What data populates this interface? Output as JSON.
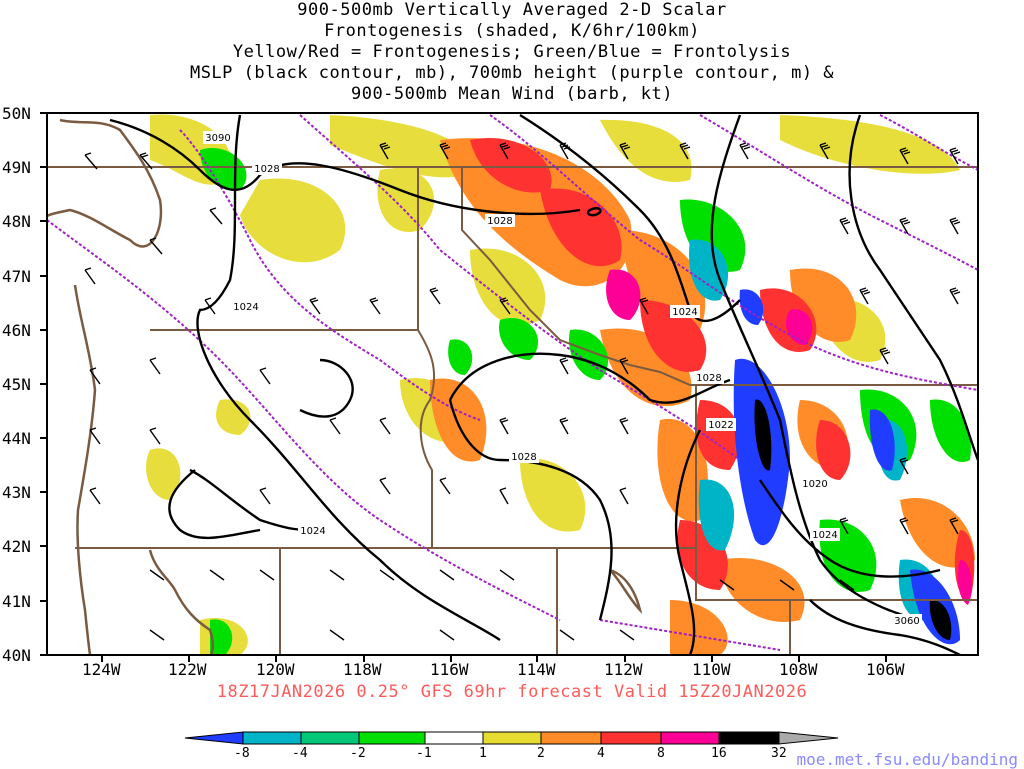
{
  "title_lines": [
    "900-500mb Vertically Averaged 2-D Scalar",
    "Frontogenesis (shaded, K/6hr/100km)",
    "Yellow/Red = Frontogenesis;  Green/Blue = Frontolysis",
    "MSLP (black contour, mb), 700mb height (purple contour, m) &",
    "900-500mb Mean Wind (barb, kt)"
  ],
  "lat_labels": [
    "50N",
    "49N",
    "48N",
    "47N",
    "46N",
    "45N",
    "44N",
    "43N",
    "42N",
    "41N",
    "40N"
  ],
  "lon_labels": [
    "124W",
    "122W",
    "120W",
    "118W",
    "116W",
    "114W",
    "112W",
    "110W",
    "108W",
    "106W"
  ],
  "contour_labels": [
    "3090",
    "1028",
    "1028",
    "1024",
    "1024",
    "1028",
    "1028",
    "1022",
    "1020",
    "1024",
    "1024",
    "3060"
  ],
  "footer": "18Z17JAN2026 0.25° GFS 69hr forecast Valid 15Z20JAN2026",
  "colorbar": {
    "labels": [
      "-8",
      "-4",
      "-2",
      "-1",
      "1",
      "2",
      "4",
      "8",
      "16",
      "32"
    ],
    "colors": [
      "#1f3cff",
      "#00b4c8",
      "#00c878",
      "#00e000",
      "#ffffff",
      "#e6dc32",
      "#ff8c28",
      "#ff3232",
      "#ff0096",
      "#000000",
      "#aaaaaa"
    ]
  },
  "url": "moe.met.fsu.edu/banding"
}
